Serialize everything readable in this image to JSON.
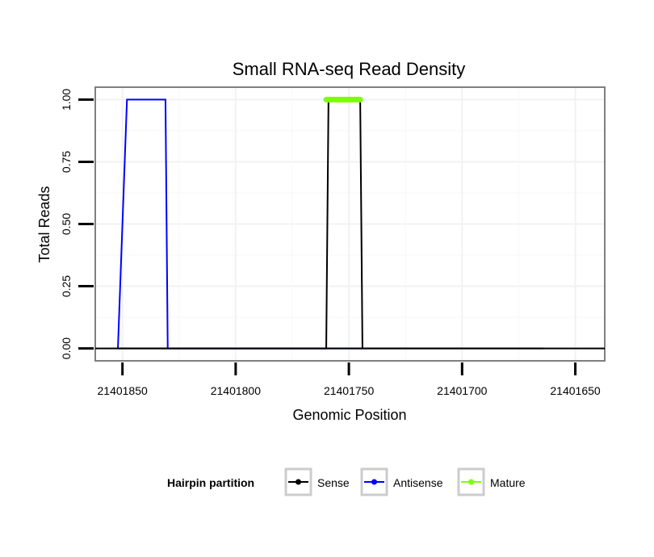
{
  "chart_data": {
    "type": "line",
    "title": "Small RNA-seq Read Density",
    "xlabel": "Genomic Position",
    "ylabel": "Total Reads",
    "x_reversed": true,
    "xlim": [
      21401862,
      21401637
    ],
    "ylim": [
      -0.05,
      1.05
    ],
    "x_ticks": [
      21401850,
      21401800,
      21401750,
      21401700,
      21401650
    ],
    "x_tick_labels": [
      "21401850",
      "21401800",
      "21401750",
      "21401700",
      "21401650"
    ],
    "y_ticks": [
      0,
      0.25,
      0.5,
      0.75,
      1.0
    ],
    "y_tick_labels": [
      "0.00",
      "0.25",
      "0.50",
      "0.75",
      "1.00"
    ],
    "grid": true,
    "legend": {
      "title": "Hairpin partition",
      "position": "bottom",
      "entries": [
        {
          "label": "Sense",
          "color": "#000000"
        },
        {
          "label": "Antisense",
          "color": "#0000ff"
        },
        {
          "label": "Mature",
          "color": "#7fff00"
        }
      ]
    },
    "series": [
      {
        "name": "Antisense",
        "color": "#0000ff",
        "x": [
          21401852,
          21401848,
          21401831,
          21401830,
          21401760,
          21401756,
          21401745,
          21401744
        ],
        "y": [
          0,
          1,
          1,
          0,
          0,
          0,
          0,
          0
        ]
      },
      {
        "name": "Sense",
        "color": "#000000",
        "x": [
          21401852,
          21401760,
          21401759,
          21401745,
          21401744,
          21401664
        ],
        "y": [
          0,
          0,
          1,
          1,
          0,
          0
        ],
        "baseline_x": [
          21401862,
          21401637
        ]
      },
      {
        "name": "Mature",
        "color": "#7fff00",
        "x": [
          21401760,
          21401745
        ],
        "y": [
          1,
          1
        ]
      }
    ]
  }
}
